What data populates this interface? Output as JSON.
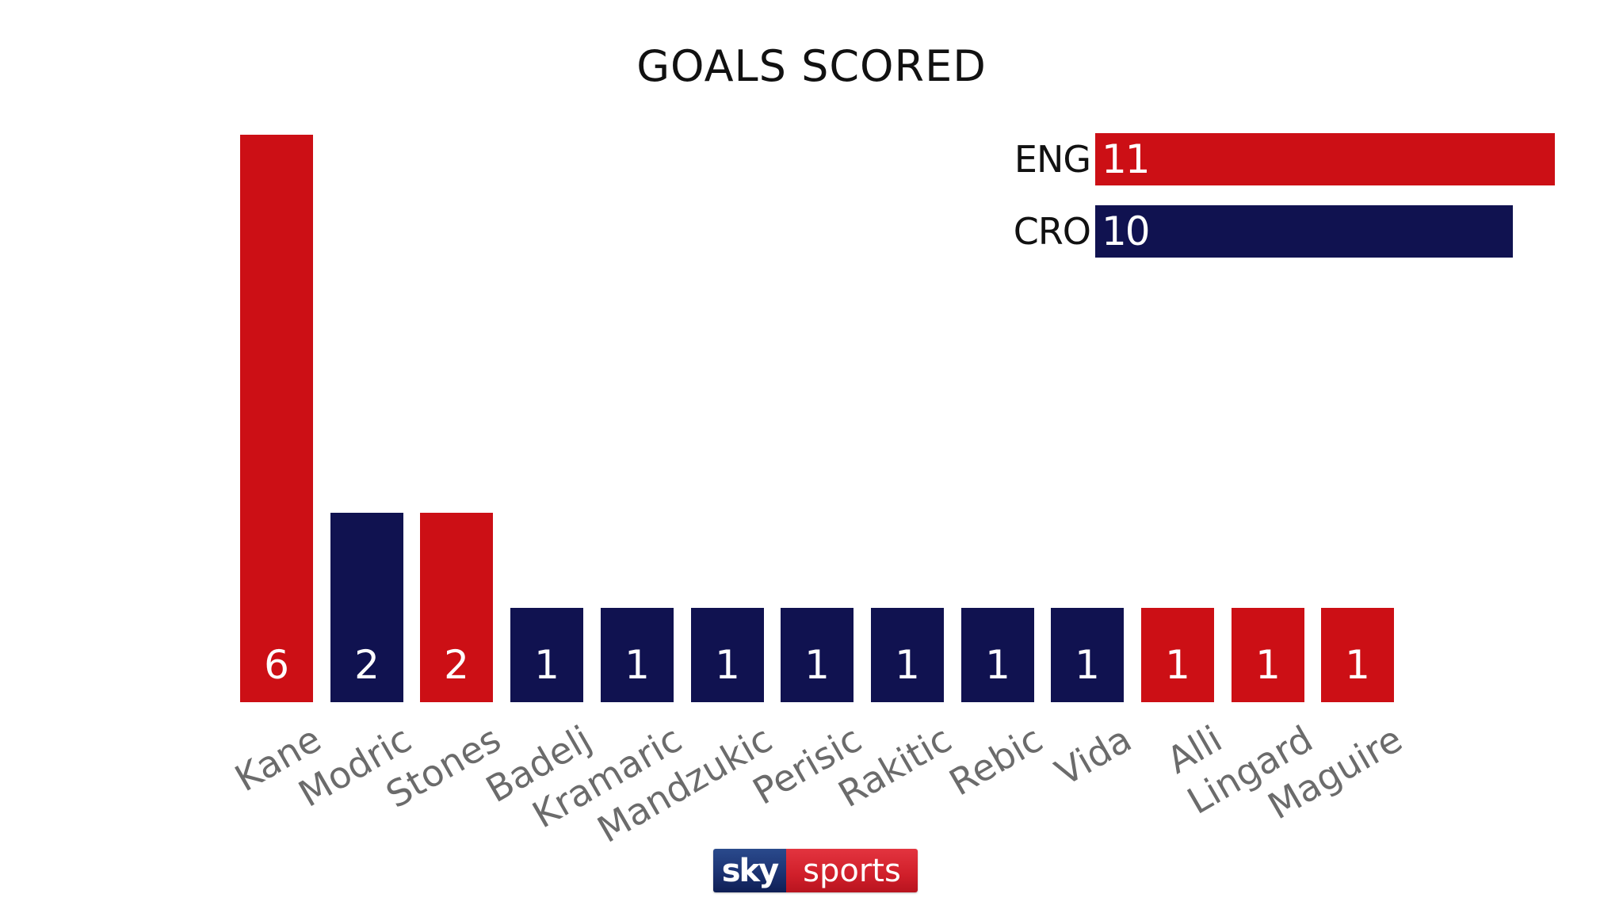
{
  "colors": {
    "england": "#cc0f15",
    "croatia": "#101250",
    "label": "#6b6b6b",
    "title": "#111111"
  },
  "header": {
    "title": "GOALS SCORED"
  },
  "totals": [
    {
      "team": "ENG",
      "value": "11",
      "color": "#cc0f15"
    },
    {
      "team": "CRO",
      "value": "10",
      "color": "#101250"
    }
  ],
  "players": [
    {
      "name": "Kane",
      "value": "6",
      "team": "ENG",
      "color": "#cc0f15"
    },
    {
      "name": "Modric",
      "value": "2",
      "team": "CRO",
      "color": "#101250"
    },
    {
      "name": "Stones",
      "value": "2",
      "team": "ENG",
      "color": "#cc0f15"
    },
    {
      "name": "Badelj",
      "value": "1",
      "team": "CRO",
      "color": "#101250"
    },
    {
      "name": "Kramaric",
      "value": "1",
      "team": "CRO",
      "color": "#101250"
    },
    {
      "name": "Mandzukic",
      "value": "1",
      "team": "CRO",
      "color": "#101250"
    },
    {
      "name": "Perisic",
      "value": "1",
      "team": "CRO",
      "color": "#101250"
    },
    {
      "name": "Rakitic",
      "value": "1",
      "team": "CRO",
      "color": "#101250"
    },
    {
      "name": "Rebic",
      "value": "1",
      "team": "CRO",
      "color": "#101250"
    },
    {
      "name": "Vida",
      "value": "1",
      "team": "CRO",
      "color": "#101250"
    },
    {
      "name": "Alli",
      "value": "1",
      "team": "ENG",
      "color": "#cc0f15"
    },
    {
      "name": "Lingard",
      "value": "1",
      "team": "ENG",
      "color": "#cc0f15"
    },
    {
      "name": "Maguire",
      "value": "1",
      "team": "ENG",
      "color": "#cc0f15"
    }
  ],
  "logo": {
    "part1": "sky",
    "part2": "sports"
  },
  "chart_data": [
    {
      "type": "bar",
      "title": "GOALS SCORED",
      "categories": [
        "Kane",
        "Modric",
        "Stones",
        "Badelj",
        "Kramaric",
        "Mandzukic",
        "Perisic",
        "Rakitic",
        "Rebic",
        "Vida",
        "Alli",
        "Lingard",
        "Maguire"
      ],
      "values": [
        6,
        2,
        2,
        1,
        1,
        1,
        1,
        1,
        1,
        1,
        1,
        1,
        1
      ],
      "bar_teams": [
        "ENG",
        "CRO",
        "ENG",
        "CRO",
        "CRO",
        "CRO",
        "CRO",
        "CRO",
        "CRO",
        "CRO",
        "ENG",
        "ENG",
        "ENG"
      ],
      "xlabel": "",
      "ylabel": "",
      "ylim": [
        0,
        6
      ],
      "grid": false,
      "legend": "none",
      "data_labels": true
    },
    {
      "type": "bar",
      "orientation": "horizontal",
      "categories": [
        "ENG",
        "CRO"
      ],
      "values": [
        11,
        10
      ],
      "colors": [
        "#cc0f15",
        "#101250"
      ],
      "xlabel": "",
      "ylabel": "",
      "grid": false,
      "data_labels": true
    }
  ]
}
